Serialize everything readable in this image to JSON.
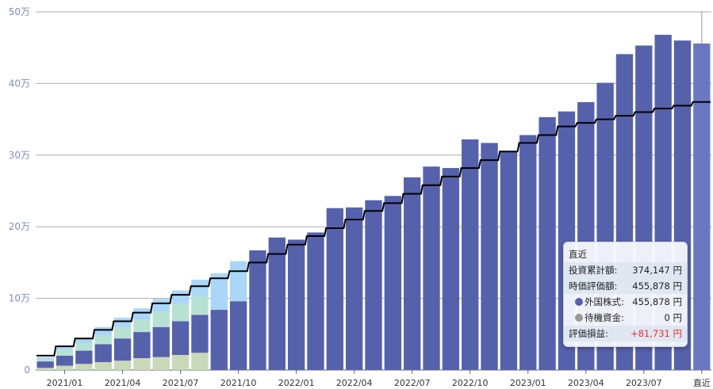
{
  "chart_data": {
    "type": "bar",
    "stacked": true,
    "units": "万円",
    "ylim": [
      0,
      50
    ],
    "yticks": [
      "0",
      "10万",
      "20万",
      "30万",
      "40万",
      "50万"
    ],
    "xtick_labels": [
      {
        "bar": 2,
        "label": "2021/01"
      },
      {
        "bar": 5,
        "label": "2021/04"
      },
      {
        "bar": 8,
        "label": "2021/07"
      },
      {
        "bar": 11,
        "label": "2021/10"
      },
      {
        "bar": 14,
        "label": "2022/01"
      },
      {
        "bar": 17,
        "label": "2022/04"
      },
      {
        "bar": 20,
        "label": "2022/07"
      },
      {
        "bar": 23,
        "label": "2022/10"
      },
      {
        "bar": 26,
        "label": "2023/01"
      },
      {
        "bar": 29,
        "label": "2023/04"
      },
      {
        "bar": 32,
        "label": "2023/07"
      },
      {
        "bar": 35,
        "label": "直近"
      }
    ],
    "grid": true,
    "series_colors": [
      "#c9d8b9",
      "#5661ab",
      "#b7e2d3",
      "#aad6f8"
    ],
    "highlight_color": "#6b78c1",
    "line_color": "#000000",
    "stack_tops": {
      "olive": [
        0.3,
        0.6,
        0.85,
        1.1,
        1.3,
        1.65,
        1.8,
        2.1,
        2.4,
        0,
        0
      ],
      "purple": [
        1.2,
        2.0,
        2.7,
        3.6,
        4.4,
        5.3,
        6.0,
        6.8,
        7.7,
        8.4,
        9.6,
        16.7,
        18.5,
        18.2,
        19.2,
        22.6,
        22.7,
        23.7,
        24.3,
        26.9,
        28.4,
        28.2,
        32.2,
        31.7,
        30.5,
        32.8,
        35.3,
        36.1,
        37.4,
        40.1,
        44.1,
        45.3,
        46.8,
        46.0,
        45.5878
      ],
      "mint": [
        1.5,
        2.8,
        3.7,
        4.8,
        5.9,
        7.0,
        8.1,
        9.2,
        10.3,
        8.4,
        9.6
      ],
      "total": [
        1.8,
        3.4,
        4.5,
        6.0,
        7.3,
        8.6,
        9.9,
        11.1,
        12.6,
        13.5,
        15.2
      ]
    },
    "investment_line": [
      2.0,
      3.3,
      4.4,
      5.6,
      6.8,
      8.0,
      9.3,
      10.5,
      11.7,
      12.8,
      13.8,
      15.0,
      16.2,
      17.5,
      18.7,
      19.8,
      21.0,
      22.2,
      23.3,
      24.6,
      25.8,
      27.0,
      28.2,
      29.3,
      30.5,
      31.7,
      32.8,
      34.0,
      34.5,
      35.0,
      35.5,
      36.0,
      36.5,
      36.9,
      37.4147
    ]
  },
  "tooltip": {
    "title": "直近",
    "invest_label": "投資累計額:",
    "invest_value": "374,147 円",
    "value_label": "時価評価額:",
    "value_value": "455,878 円",
    "foreign_label": "外国株式:",
    "foreign_value": "455,878 円",
    "foreign_color": "#5661ab",
    "cash_label": "待機資金:",
    "cash_value": "0 円",
    "cash_color": "#999999",
    "pl_label": "評価損益:",
    "pl_value": "+81,731 円",
    "pl_color": "#f0302a"
  }
}
